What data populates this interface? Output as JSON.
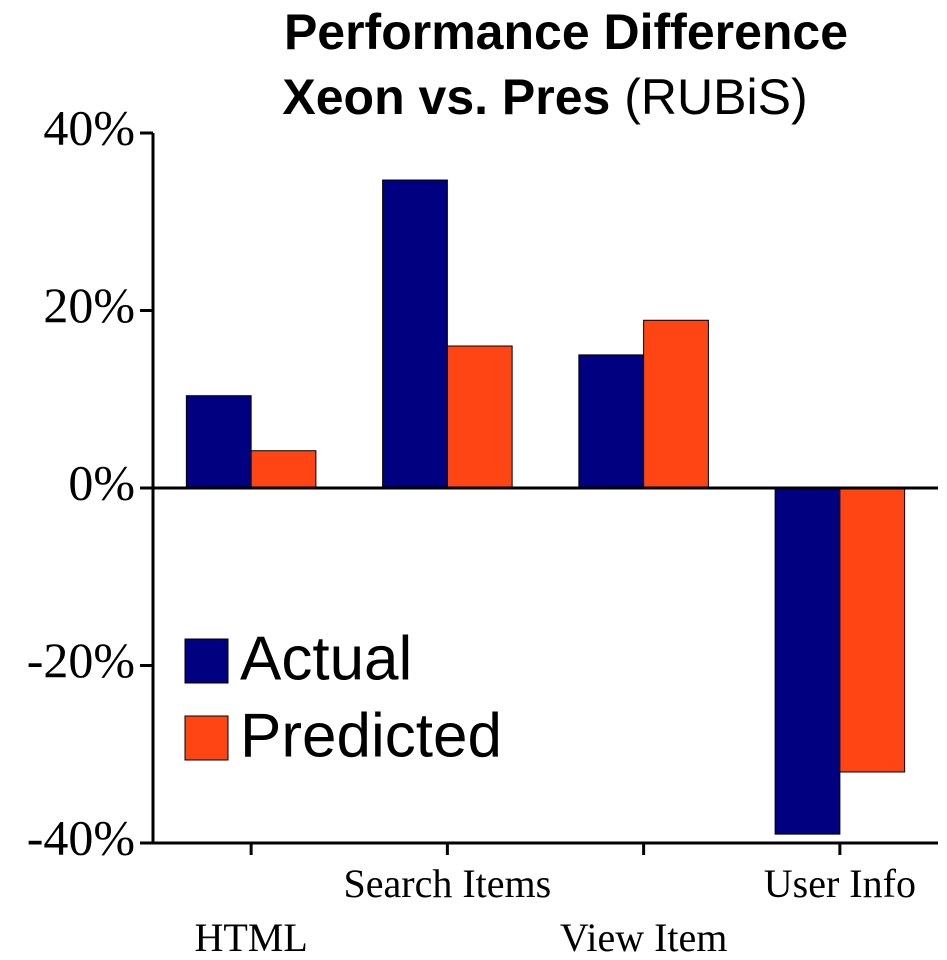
{
  "chart_data": {
    "type": "bar",
    "title": "Performance Difference",
    "subtitle": "Xeon vs. Pres",
    "subtitle_note": "(RUBiS)",
    "categories": [
      "HTML",
      "Search Items",
      "View Item",
      "User Info"
    ],
    "series": [
      {
        "name": "Actual",
        "color": "#000080",
        "values": [
          10.4,
          34.7,
          15,
          -39
        ]
      },
      {
        "name": "Predicted",
        "color": "#ff4513",
        "values": [
          4.2,
          16,
          18.9,
          -32
        ]
      }
    ],
    "ylim": [
      -40,
      40
    ],
    "yticks": [
      {
        "value": -40,
        "label": "-40%"
      },
      {
        "value": -20,
        "label": "-20%"
      },
      {
        "value": 0,
        "label": "0%"
      },
      {
        "value": 20,
        "label": "20%"
      },
      {
        "value": 40,
        "label": "40%"
      }
    ],
    "legend": "lower left"
  }
}
